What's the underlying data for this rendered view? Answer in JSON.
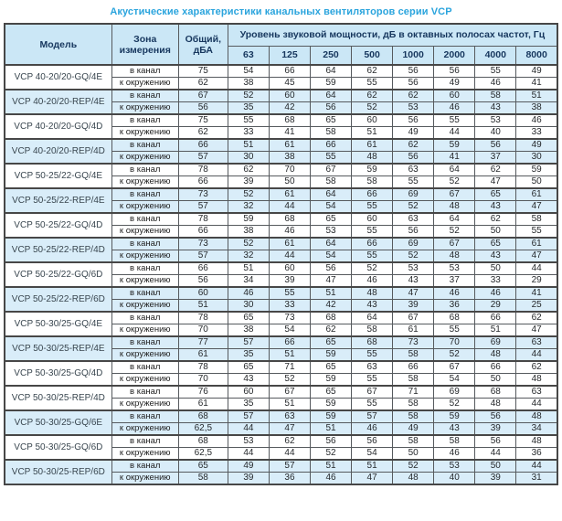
{
  "title": "Акустические характеристики канальных вентиляторов  серии VCP",
  "colors": {
    "title_text": "#2aa4dd",
    "header_bg": "#cbe7f6",
    "header_text": "#17375e",
    "row_highlight": "#d9edf9"
  },
  "table": {
    "headers": {
      "model": "Модель",
      "zone": "Зона измерения",
      "total": "Общий, дБА",
      "spl": "Уровень звуковой мощности, дБ в октавных полосах частот, Гц"
    },
    "frequencies": [
      "63",
      "125",
      "250",
      "500",
      "1000",
      "2000",
      "4000",
      "8000"
    ],
    "zone_labels": {
      "in_duct": "в канал",
      "surround": "к окружению"
    },
    "rows": [
      {
        "model": "VCP 40-20/20-GQ/4E",
        "highlight": false,
        "in_duct": {
          "total": "75",
          "levels": [
            "54",
            "66",
            "64",
            "62",
            "56",
            "56",
            "55",
            "49"
          ]
        },
        "surround": {
          "total": "62",
          "levels": [
            "38",
            "45",
            "59",
            "55",
            "56",
            "49",
            "46",
            "41"
          ]
        }
      },
      {
        "model": "VCP 40-20/20-REP/4E",
        "highlight": true,
        "in_duct": {
          "total": "67",
          "levels": [
            "52",
            "60",
            "64",
            "62",
            "62",
            "60",
            "58",
            "51"
          ]
        },
        "surround": {
          "total": "56",
          "levels": [
            "35",
            "42",
            "56",
            "52",
            "53",
            "46",
            "43",
            "38"
          ]
        }
      },
      {
        "model": "VCP 40-20/20-GQ/4D",
        "highlight": false,
        "in_duct": {
          "total": "75",
          "levels": [
            "55",
            "68",
            "65",
            "60",
            "56",
            "55",
            "53",
            "46"
          ]
        },
        "surround": {
          "total": "62",
          "levels": [
            "33",
            "41",
            "58",
            "51",
            "49",
            "44",
            "40",
            "33"
          ]
        }
      },
      {
        "model": "VCP 40-20/20-REP/4D",
        "highlight": true,
        "in_duct": {
          "total": "66",
          "levels": [
            "51",
            "61",
            "66",
            "61",
            "62",
            "59",
            "56",
            "49"
          ]
        },
        "surround": {
          "total": "57",
          "levels": [
            "30",
            "38",
            "55",
            "48",
            "56",
            "41",
            "37",
            "30"
          ]
        }
      },
      {
        "model": "VCP 50-25/22-GQ/4E",
        "highlight": false,
        "in_duct": {
          "total": "78",
          "levels": [
            "62",
            "70",
            "67",
            "59",
            "63",
            "64",
            "62",
            "59"
          ]
        },
        "surround": {
          "total": "66",
          "levels": [
            "39",
            "50",
            "58",
            "58",
            "55",
            "52",
            "47",
            "50"
          ]
        }
      },
      {
        "model": "VCP 50-25/22-REP/4E",
        "highlight": true,
        "in_duct": {
          "total": "73",
          "levels": [
            "52",
            "61",
            "64",
            "66",
            "69",
            "67",
            "65",
            "61"
          ]
        },
        "surround": {
          "total": "57",
          "levels": [
            "32",
            "44",
            "54",
            "55",
            "52",
            "48",
            "43",
            "47"
          ]
        }
      },
      {
        "model": "VCP 50-25/22-GQ/4D",
        "highlight": false,
        "in_duct": {
          "total": "78",
          "levels": [
            "59",
            "68",
            "65",
            "60",
            "63",
            "64",
            "62",
            "58"
          ]
        },
        "surround": {
          "total": "66",
          "levels": [
            "38",
            "46",
            "53",
            "55",
            "56",
            "52",
            "50",
            "55"
          ]
        }
      },
      {
        "model": "VCP 50-25/22-REP/4D",
        "highlight": true,
        "in_duct": {
          "total": "73",
          "levels": [
            "52",
            "61",
            "64",
            "66",
            "69",
            "67",
            "65",
            "61"
          ]
        },
        "surround": {
          "total": "57",
          "levels": [
            "32",
            "44",
            "54",
            "55",
            "52",
            "48",
            "43",
            "47"
          ]
        }
      },
      {
        "model": "VCP 50-25/22-GQ/6D",
        "highlight": false,
        "in_duct": {
          "total": "66",
          "levels": [
            "51",
            "60",
            "56",
            "52",
            "53",
            "53",
            "50",
            "44"
          ]
        },
        "surround": {
          "total": "56",
          "levels": [
            "34",
            "39",
            "47",
            "46",
            "43",
            "37",
            "33",
            "29"
          ]
        }
      },
      {
        "model": "VCP 50-25/22-REP/6D",
        "highlight": true,
        "in_duct": {
          "total": "60",
          "levels": [
            "46",
            "55",
            "51",
            "48",
            "47",
            "46",
            "46",
            "41"
          ]
        },
        "surround": {
          "total": "51",
          "levels": [
            "30",
            "33",
            "42",
            "43",
            "39",
            "36",
            "29",
            "25"
          ]
        }
      },
      {
        "model": "VCP 50-30/25-GQ/4E",
        "highlight": false,
        "in_duct": {
          "total": "78",
          "levels": [
            "65",
            "73",
            "68",
            "64",
            "67",
            "68",
            "66",
            "62"
          ]
        },
        "surround": {
          "total": "70",
          "levels": [
            "38",
            "54",
            "62",
            "58",
            "61",
            "55",
            "51",
            "47"
          ]
        }
      },
      {
        "model": "VCP 50-30/25-REP/4E",
        "highlight": true,
        "in_duct": {
          "total": "77",
          "levels": [
            "57",
            "66",
            "65",
            "68",
            "73",
            "70",
            "69",
            "63"
          ]
        },
        "surround": {
          "total": "61",
          "levels": [
            "35",
            "51",
            "59",
            "55",
            "58",
            "52",
            "48",
            "44"
          ]
        }
      },
      {
        "model": "VCP 50-30/25-GQ/4D",
        "highlight": false,
        "in_duct": {
          "total": "78",
          "levels": [
            "65",
            "71",
            "65",
            "63",
            "66",
            "67",
            "66",
            "62"
          ]
        },
        "surround": {
          "total": "70",
          "levels": [
            "43",
            "52",
            "59",
            "55",
            "58",
            "54",
            "50",
            "48"
          ]
        }
      },
      {
        "model": "VCP 50-30/25-REP/4D",
        "highlight": false,
        "in_duct": {
          "total": "76",
          "levels": [
            "60",
            "67",
            "65",
            "67",
            "71",
            "69",
            "68",
            "63"
          ]
        },
        "surround": {
          "total": "61",
          "levels": [
            "35",
            "51",
            "59",
            "55",
            "58",
            "52",
            "48",
            "44"
          ]
        }
      },
      {
        "model": "VCP 50-30/25-GQ/6E",
        "highlight": true,
        "in_duct": {
          "total": "68",
          "levels": [
            "57",
            "63",
            "59",
            "57",
            "58",
            "59",
            "56",
            "48"
          ]
        },
        "surround": {
          "total": "62,5",
          "levels": [
            "44",
            "47",
            "51",
            "46",
            "49",
            "43",
            "39",
            "34"
          ]
        }
      },
      {
        "model": "VCP 50-30/25-GQ/6D",
        "highlight": false,
        "in_duct": {
          "total": "68",
          "levels": [
            "53",
            "62",
            "56",
            "56",
            "58",
            "58",
            "56",
            "48"
          ]
        },
        "surround": {
          "total": "62,5",
          "levels": [
            "44",
            "44",
            "52",
            "54",
            "50",
            "46",
            "44",
            "36"
          ]
        }
      },
      {
        "model": "VCP 50-30/25-REP/6D",
        "highlight": true,
        "in_duct": {
          "total": "65",
          "levels": [
            "49",
            "57",
            "51",
            "51",
            "52",
            "53",
            "50",
            "44"
          ]
        },
        "surround": {
          "total": "58",
          "levels": [
            "39",
            "36",
            "46",
            "47",
            "48",
            "40",
            "39",
            "31"
          ]
        }
      }
    ]
  }
}
